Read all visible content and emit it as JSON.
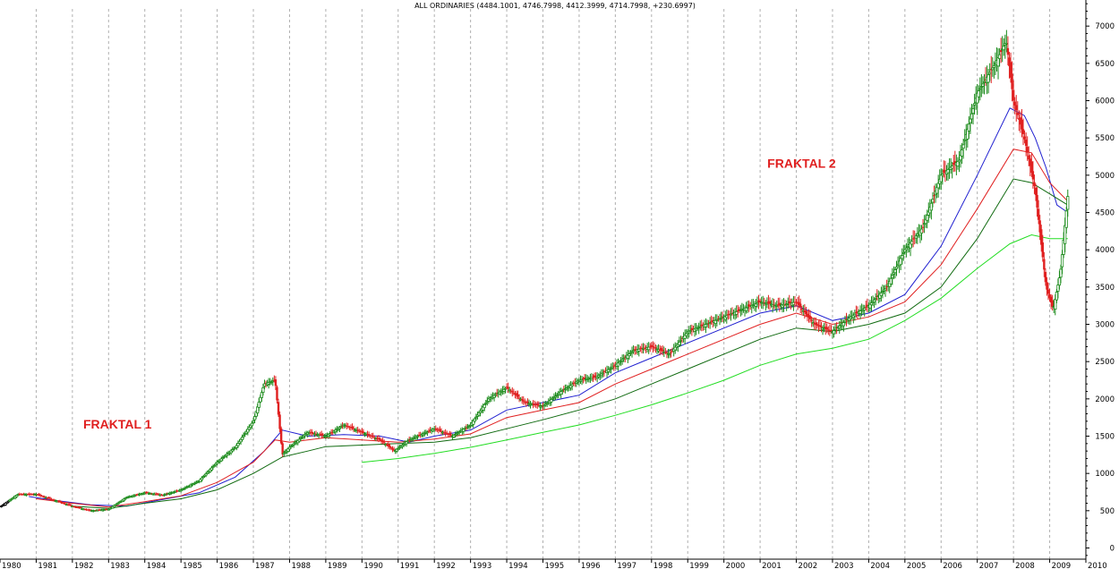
{
  "chart_data": {
    "type": "line",
    "title": "ALL ORDINARIES (4484.1001, 4746.7998, 4412.3999, 4714.7998, +230.6997)",
    "xlabel": "",
    "ylabel": "",
    "x_ticks": [
      "1980",
      "1981",
      "1982",
      "1983",
      "1984",
      "1985",
      "1986",
      "1987",
      "1988",
      "1989",
      "1990",
      "1991",
      "1992",
      "1993",
      "1994",
      "1995",
      "1996",
      "1997",
      "1998",
      "1999",
      "2000",
      "2001",
      "2002",
      "2003",
      "2004",
      "2005",
      "2006",
      "2007",
      "2008",
      "2009",
      "2010"
    ],
    "y_ticks": [
      0,
      500,
      1000,
      1500,
      2000,
      2500,
      3000,
      3500,
      4000,
      4500,
      5000,
      5500,
      6000,
      6500,
      7000
    ],
    "xlim": [
      1980.0,
      2010.0
    ],
    "ylim": [
      -150,
      7350
    ],
    "grid": "vertical-dashed",
    "annotations": [
      {
        "text": "FRAKTAL 1",
        "x": 1982.3,
        "y": 1600,
        "color": "#e02020"
      },
      {
        "text": "FRAKTAL 2",
        "x": 2001.2,
        "y": 5100,
        "color": "#e02020"
      }
    ],
    "series": [
      {
        "color": "#1a8a1a",
        "style": "candles-up-green-down-red",
        "x": [
          1980.0,
          1980.5,
          1981.0,
          1981.5,
          1982.0,
          1982.5,
          1983.0,
          1983.5,
          1984.0,
          1984.5,
          1985.0,
          1985.5,
          1986.0,
          1986.5,
          1987.0,
          1987.3,
          1987.6,
          1987.8,
          1988.0,
          1988.5,
          1989.0,
          1989.5,
          1990.0,
          1990.5,
          1990.9,
          1991.3,
          1992.0,
          1992.5,
          1993.0,
          1993.5,
          1994.0,
          1994.5,
          1995.0,
          1995.5,
          1996.0,
          1996.5,
          1997.0,
          1997.5,
          1998.0,
          1998.5,
          1999.0,
          1999.5,
          2000.0,
          2000.5,
          2001.0,
          2001.5,
          2002.0,
          2002.5,
          2003.0,
          2003.5,
          2004.0,
          2004.5,
          2005.0,
          2005.5,
          2006.0,
          2006.5,
          2007.0,
          2007.5,
          2007.8,
          2008.0,
          2008.3,
          2008.6,
          2008.9,
          2009.1,
          2009.3,
          2009.5
        ],
        "values": [
          550,
          720,
          720,
          640,
          560,
          500,
          520,
          680,
          740,
          710,
          780,
          900,
          1150,
          1350,
          1700,
          2200,
          2250,
          1250,
          1350,
          1550,
          1500,
          1650,
          1550,
          1450,
          1300,
          1450,
          1600,
          1500,
          1650,
          2000,
          2150,
          1950,
          1900,
          2100,
          2250,
          2300,
          2450,
          2650,
          2700,
          2600,
          2900,
          3000,
          3100,
          3200,
          3300,
          3250,
          3300,
          3000,
          2900,
          3100,
          3250,
          3500,
          4000,
          4300,
          5000,
          5200,
          6100,
          6500,
          6800,
          6000,
          5500,
          4800,
          3500,
          3200,
          3700,
          4715
        ]
      },
      {
        "color": "#1f1fd0",
        "style": "line",
        "x": [
          1980.8,
          1981.5,
          1982.5,
          1983.5,
          1984.5,
          1985.5,
          1986.5,
          1987.3,
          1987.8,
          1988.5,
          1989.5,
          1990.5,
          1991.3,
          1992.0,
          1993.0,
          1994.0,
          1995.0,
          1996.0,
          1997.0,
          1998.0,
          1999.0,
          2000.0,
          2001.0,
          2002.0,
          2003.0,
          2004.0,
          2005.0,
          2006.0,
          2007.0,
          2007.9,
          2008.3,
          2008.6,
          2008.9,
          2009.2,
          2009.5
        ],
        "values": [
          690,
          640,
          580,
          560,
          650,
          740,
          950,
          1300,
          1580,
          1500,
          1520,
          1500,
          1420,
          1500,
          1580,
          1850,
          1950,
          2050,
          2350,
          2550,
          2750,
          2950,
          3150,
          3250,
          3050,
          3150,
          3400,
          4050,
          5000,
          5900,
          5800,
          5500,
          5100,
          4600,
          4500
        ]
      },
      {
        "color": "#e02020",
        "style": "line",
        "x": [
          1981.0,
          1982.0,
          1983.0,
          1984.0,
          1985.0,
          1986.0,
          1987.0,
          1987.6,
          1988.0,
          1989.0,
          1990.0,
          1991.0,
          1992.0,
          1993.0,
          1994.0,
          1995.0,
          1996.0,
          1997.0,
          1998.0,
          1999.0,
          2000.0,
          2001.0,
          2002.0,
          2003.0,
          2004.0,
          2005.0,
          2006.0,
          2007.0,
          2008.0,
          2008.5,
          2009.0,
          2009.5
        ],
        "values": [
          660,
          600,
          550,
          620,
          700,
          880,
          1150,
          1450,
          1420,
          1480,
          1450,
          1420,
          1460,
          1530,
          1750,
          1850,
          1950,
          2200,
          2400,
          2600,
          2800,
          3000,
          3150,
          3000,
          3100,
          3300,
          3800,
          4550,
          5350,
          5300,
          4900,
          4650
        ]
      },
      {
        "color": "#106a10",
        "style": "line",
        "x": [
          1982.0,
          1983.0,
          1984.0,
          1985.0,
          1986.0,
          1987.0,
          1987.8,
          1988.5,
          1989.0,
          1990.0,
          1991.0,
          1992.0,
          1993.0,
          1994.0,
          1995.0,
          1996.0,
          1997.0,
          1998.0,
          1999.0,
          2000.0,
          2001.0,
          2002.0,
          2003.0,
          2004.0,
          2005.0,
          2006.0,
          2007.0,
          2008.0,
          2008.5,
          2009.0,
          2009.5
        ],
        "values": [
          560,
          530,
          600,
          660,
          780,
          1000,
          1220,
          1300,
          1360,
          1380,
          1400,
          1420,
          1480,
          1600,
          1720,
          1850,
          2000,
          2200,
          2400,
          2600,
          2800,
          2950,
          2900,
          3000,
          3150,
          3500,
          4150,
          4950,
          4900,
          4750,
          4600
        ]
      },
      {
        "color": "#22dd22",
        "style": "line",
        "x": [
          1990.0,
          1991.0,
          1992.0,
          1993.0,
          1994.0,
          1995.0,
          1996.0,
          1997.0,
          1998.0,
          1999.0,
          2000.0,
          2001.0,
          2002.0,
          2003.0,
          2004.0,
          2005.0,
          2006.0,
          2007.0,
          2007.9,
          2008.5,
          2009.0,
          2009.5
        ],
        "values": [
          1150,
          1200,
          1270,
          1350,
          1450,
          1550,
          1650,
          1780,
          1920,
          2080,
          2250,
          2450,
          2600,
          2680,
          2800,
          3050,
          3350,
          3750,
          4080,
          4200,
          4150,
          4150
        ]
      }
    ]
  }
}
